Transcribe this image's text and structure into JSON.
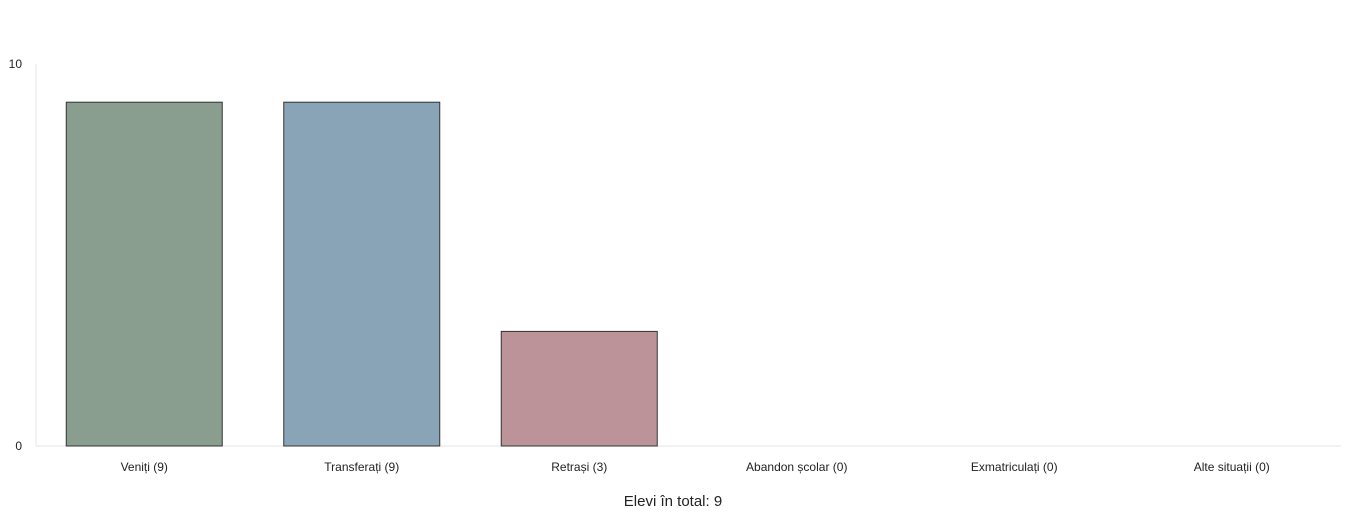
{
  "chart_data": {
    "type": "bar",
    "title": "",
    "xlabel": "Elevi în total: 9",
    "ylabel": "",
    "ylim": [
      0,
      10
    ],
    "yticks": [
      "0",
      "10"
    ],
    "grid": false,
    "legend": "none",
    "categories": [
      "Veniți (9)",
      "Transferați (9)",
      "Retrași (3)",
      "Abandon școlar (0)",
      "Exmatriculați (0)",
      "Alte situații (0)"
    ],
    "values": [
      9,
      9,
      3,
      0,
      0,
      0
    ],
    "colors": [
      "#8a9e90",
      "#88a4b6",
      "#bc9399",
      "#bbbbbb",
      "#bbbbbb",
      "#bbbbbb"
    ],
    "bar_border_color": "#333333",
    "axis_color": "#e6e6e6"
  }
}
